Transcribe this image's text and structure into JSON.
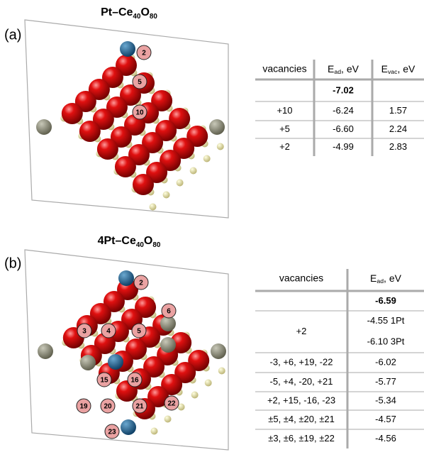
{
  "panels": [
    {
      "label": "(a)",
      "title": {
        "prefix": "Pt–Ce",
        "sub1": "40",
        "mid": "O",
        "sub2": "80"
      },
      "atom_labels": [
        "2",
        "5",
        "10"
      ],
      "table": {
        "headers": [
          "vacancies",
          {
            "main": "E",
            "sub": "ad",
            "rest": ", eV"
          },
          {
            "main": "E",
            "sub": "vac",
            "rest": ", eV"
          }
        ],
        "rows": [
          [
            null,
            "-7.02",
            null
          ],
          [
            "+10",
            "-6.24",
            "1.57"
          ],
          [
            "+5",
            "-6.60",
            "2.24"
          ],
          [
            "+2",
            "-4.99",
            "2.83"
          ]
        ]
      }
    },
    {
      "label": "(b)",
      "title": {
        "prefix": "4Pt–Ce",
        "sub1": "40",
        "mid": "O",
        "sub2": "80"
      },
      "atom_labels": [
        "2",
        "3",
        "4",
        "5",
        "6",
        "15",
        "16",
        "19",
        "20",
        "21",
        "22",
        "23"
      ],
      "table": {
        "headers": [
          "vacancies",
          {
            "main": "E",
            "sub": "ad",
            "rest": ", eV"
          }
        ],
        "rows": [
          [
            null,
            "-6.59"
          ],
          [
            "+2",
            [
              "-4.55 1Pt",
              "-6.10 3Pt"
            ]
          ],
          [
            "-3, +6, +19, -22",
            "-6.02"
          ],
          [
            "-5, +4, -20, +21",
            "-5.77"
          ],
          [
            "+2, +15, -16, -23",
            "-5.34"
          ],
          [
            "±5, ±4, ±20, ±21",
            "-4.57"
          ],
          [
            "±3, ±6, ±19, ±22",
            "-4.56"
          ]
        ]
      }
    }
  ]
}
